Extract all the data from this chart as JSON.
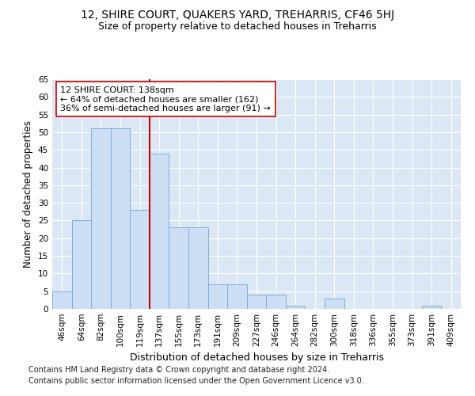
{
  "title1": "12, SHIRE COURT, QUAKERS YARD, TREHARRIS, CF46 5HJ",
  "title2": "Size of property relative to detached houses in Treharris",
  "xlabel": "Distribution of detached houses by size in Treharris",
  "ylabel": "Number of detached properties",
  "footer1": "Contains HM Land Registry data © Crown copyright and database right 2024.",
  "footer2": "Contains public sector information licensed under the Open Government Licence v3.0.",
  "categories": [
    "46sqm",
    "64sqm",
    "82sqm",
    "100sqm",
    "119sqm",
    "137sqm",
    "155sqm",
    "173sqm",
    "191sqm",
    "209sqm",
    "227sqm",
    "246sqm",
    "264sqm",
    "282sqm",
    "300sqm",
    "318sqm",
    "336sqm",
    "355sqm",
    "373sqm",
    "391sqm",
    "409sqm"
  ],
  "values": [
    5,
    25,
    51,
    51,
    28,
    44,
    23,
    23,
    7,
    7,
    4,
    4,
    1,
    0,
    3,
    0,
    0,
    0,
    0,
    1,
    0
  ],
  "bar_color": "#ccdff5",
  "bar_edge_color": "#7aafd4",
  "vline_index": 5,
  "vline_color": "#cc0000",
  "annotation_text": "12 SHIRE COURT: 138sqm\n← 64% of detached houses are smaller (162)\n36% of semi-detached houses are larger (91) →",
  "annotation_box_facecolor": "#ffffff",
  "annotation_box_edgecolor": "#cc0000",
  "ylim": [
    0,
    65
  ],
  "yticks": [
    0,
    5,
    10,
    15,
    20,
    25,
    30,
    35,
    40,
    45,
    50,
    55,
    60,
    65
  ],
  "background_color": "#dce7f5",
  "grid_color": "#ffffff",
  "title1_fontsize": 10,
  "title2_fontsize": 9,
  "annotation_fontsize": 8,
  "tick_fontsize": 7.5,
  "xlabel_fontsize": 9,
  "ylabel_fontsize": 8.5,
  "footer_fontsize": 7
}
